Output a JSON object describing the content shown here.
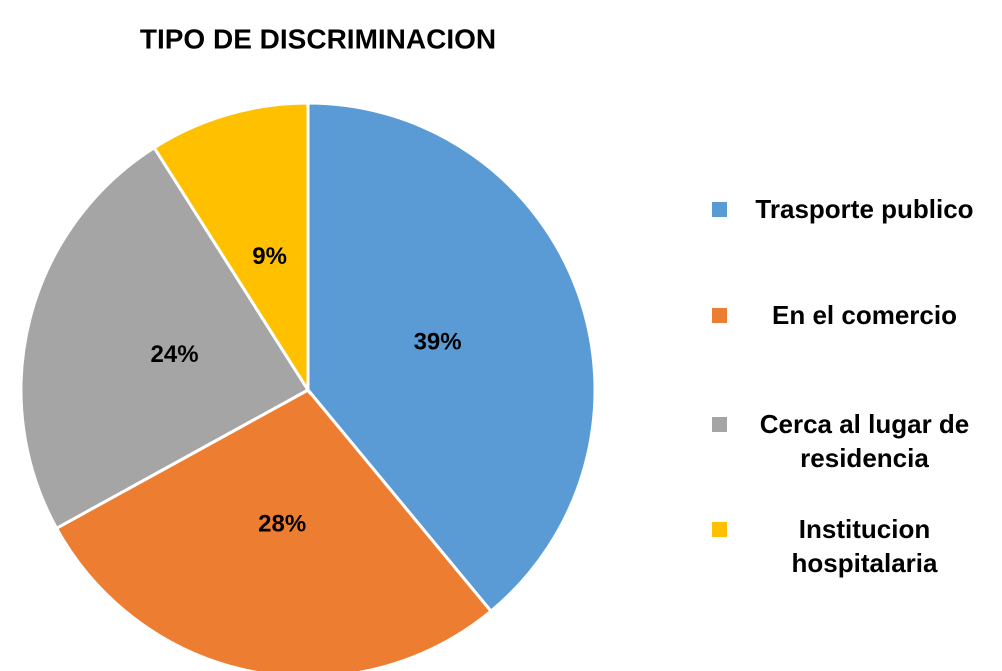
{
  "chart_data": {
    "type": "pie",
    "title": "TIPO DE DISCRIMINACION",
    "categories": [
      "Trasporte publico",
      "En el comercio",
      "Cerca al lugar de residencia",
      " Institucion hospitalaria"
    ],
    "values": [
      39,
      28,
      24,
      9
    ],
    "value_labels": [
      "39%",
      "28%",
      "24%",
      "9%"
    ],
    "colors": [
      "#5b9bd5",
      "#ed7d31",
      "#a5a5a5",
      "#ffc000"
    ],
    "legend": "right"
  }
}
